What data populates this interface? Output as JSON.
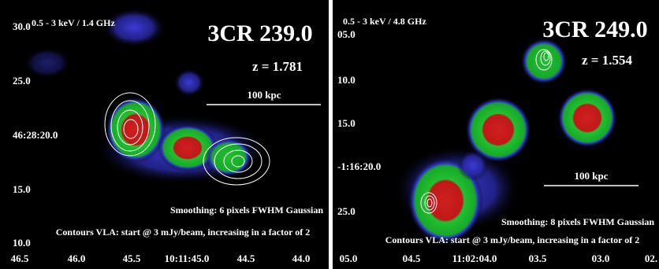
{
  "panels": [
    {
      "band": "0.5 - 3 keV / 1.4 GHz",
      "source": "3CR 239.0",
      "redshift": "z = 1.781",
      "scale": "100 kpc",
      "smoothing": "Smoothing: 6 pixels FWHM Gaussian",
      "contours": "Contours VLA: start @ 3 mJy/beam, increasing in a factor of 2",
      "y_labels": [
        "30.0",
        "25.0",
        "46:28:20.0",
        "15.0",
        "10.0"
      ],
      "x_labels": [
        "46.5",
        "46.0",
        "45.5",
        "10:11:45.0",
        "44.5",
        "44.0"
      ]
    },
    {
      "band": "0.5 - 3 keV / 4.8 GHz",
      "source": "3CR 249.0",
      "redshift": "z = 1.554",
      "scale": "100 kpc",
      "smoothing": "Smoothing: 8 pixels FWHM Gaussian",
      "contours": "Contours VLA: start @ 3 mJy/beam, increasing in a factor of 2",
      "y_labels": [
        "05.0",
        "10.0",
        "15.0",
        "-1:16:20.0",
        "25.0"
      ],
      "x_labels": [
        "05.0",
        "04.5",
        "11:02:04.0",
        "03.5",
        "03.0",
        "02."
      ]
    }
  ]
}
